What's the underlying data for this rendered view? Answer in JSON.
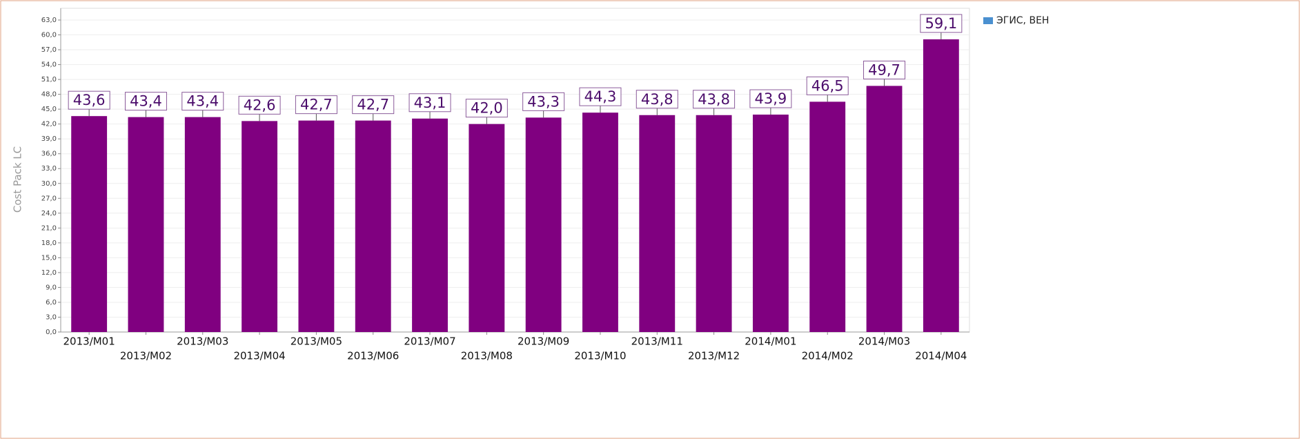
{
  "chart_data": {
    "type": "bar",
    "y_label": "Cost Pack LC",
    "categories": [
      "2013/M01",
      "2013/M02",
      "2013/M03",
      "2013/M04",
      "2013/M05",
      "2013/M06",
      "2013/M07",
      "2013/M08",
      "2013/M09",
      "2013/M10",
      "2013/M11",
      "2013/M12",
      "2014/M01",
      "2014/M02",
      "2014/M03",
      "2014/M04"
    ],
    "series": [
      {
        "name": "ЭГИС, ВЕН",
        "color": "#800080",
        "values": [
          43.6,
          43.4,
          43.4,
          42.6,
          42.7,
          42.7,
          43.1,
          42.0,
          43.3,
          44.3,
          43.8,
          43.8,
          43.9,
          46.5,
          49.7,
          59.1
        ],
        "value_labels": [
          "43,6",
          "43,4",
          "43,4",
          "42,6",
          "42,7",
          "42,7",
          "43,1",
          "42,0",
          "43,3",
          "44,3",
          "43,8",
          "43,8",
          "43,9",
          "46,5",
          "49,7",
          "59,1"
        ]
      }
    ],
    "ylim": [
      0,
      63
    ],
    "yticks": [
      {
        "value": 0,
        "label": "0,0"
      },
      {
        "value": 3,
        "label": "3,0"
      },
      {
        "value": 6,
        "label": "6,0"
      },
      {
        "value": 9,
        "label": "9,0"
      },
      {
        "value": 12,
        "label": "12,0"
      },
      {
        "value": 15,
        "label": "15,0"
      },
      {
        "value": 18,
        "label": "18,0"
      },
      {
        "value": 21,
        "label": "21,0"
      },
      {
        "value": 24,
        "label": "24,0"
      },
      {
        "value": 27,
        "label": "27,0"
      },
      {
        "value": 30,
        "label": "30,0"
      },
      {
        "value": 33,
        "label": "33,0"
      },
      {
        "value": 36,
        "label": "36,0"
      },
      {
        "value": 39,
        "label": "39,0"
      },
      {
        "value": 42,
        "label": "42,0"
      },
      {
        "value": 45,
        "label": "45,0"
      },
      {
        "value": 48,
        "label": "48,0"
      },
      {
        "value": 51,
        "label": "51,0"
      },
      {
        "value": 54,
        "label": "54,0"
      },
      {
        "value": 57,
        "label": "57,0"
      },
      {
        "value": 60,
        "label": "60,0"
      },
      {
        "value": 63,
        "label": "63,0"
      }
    ],
    "grid": true,
    "legend": "top-right"
  }
}
